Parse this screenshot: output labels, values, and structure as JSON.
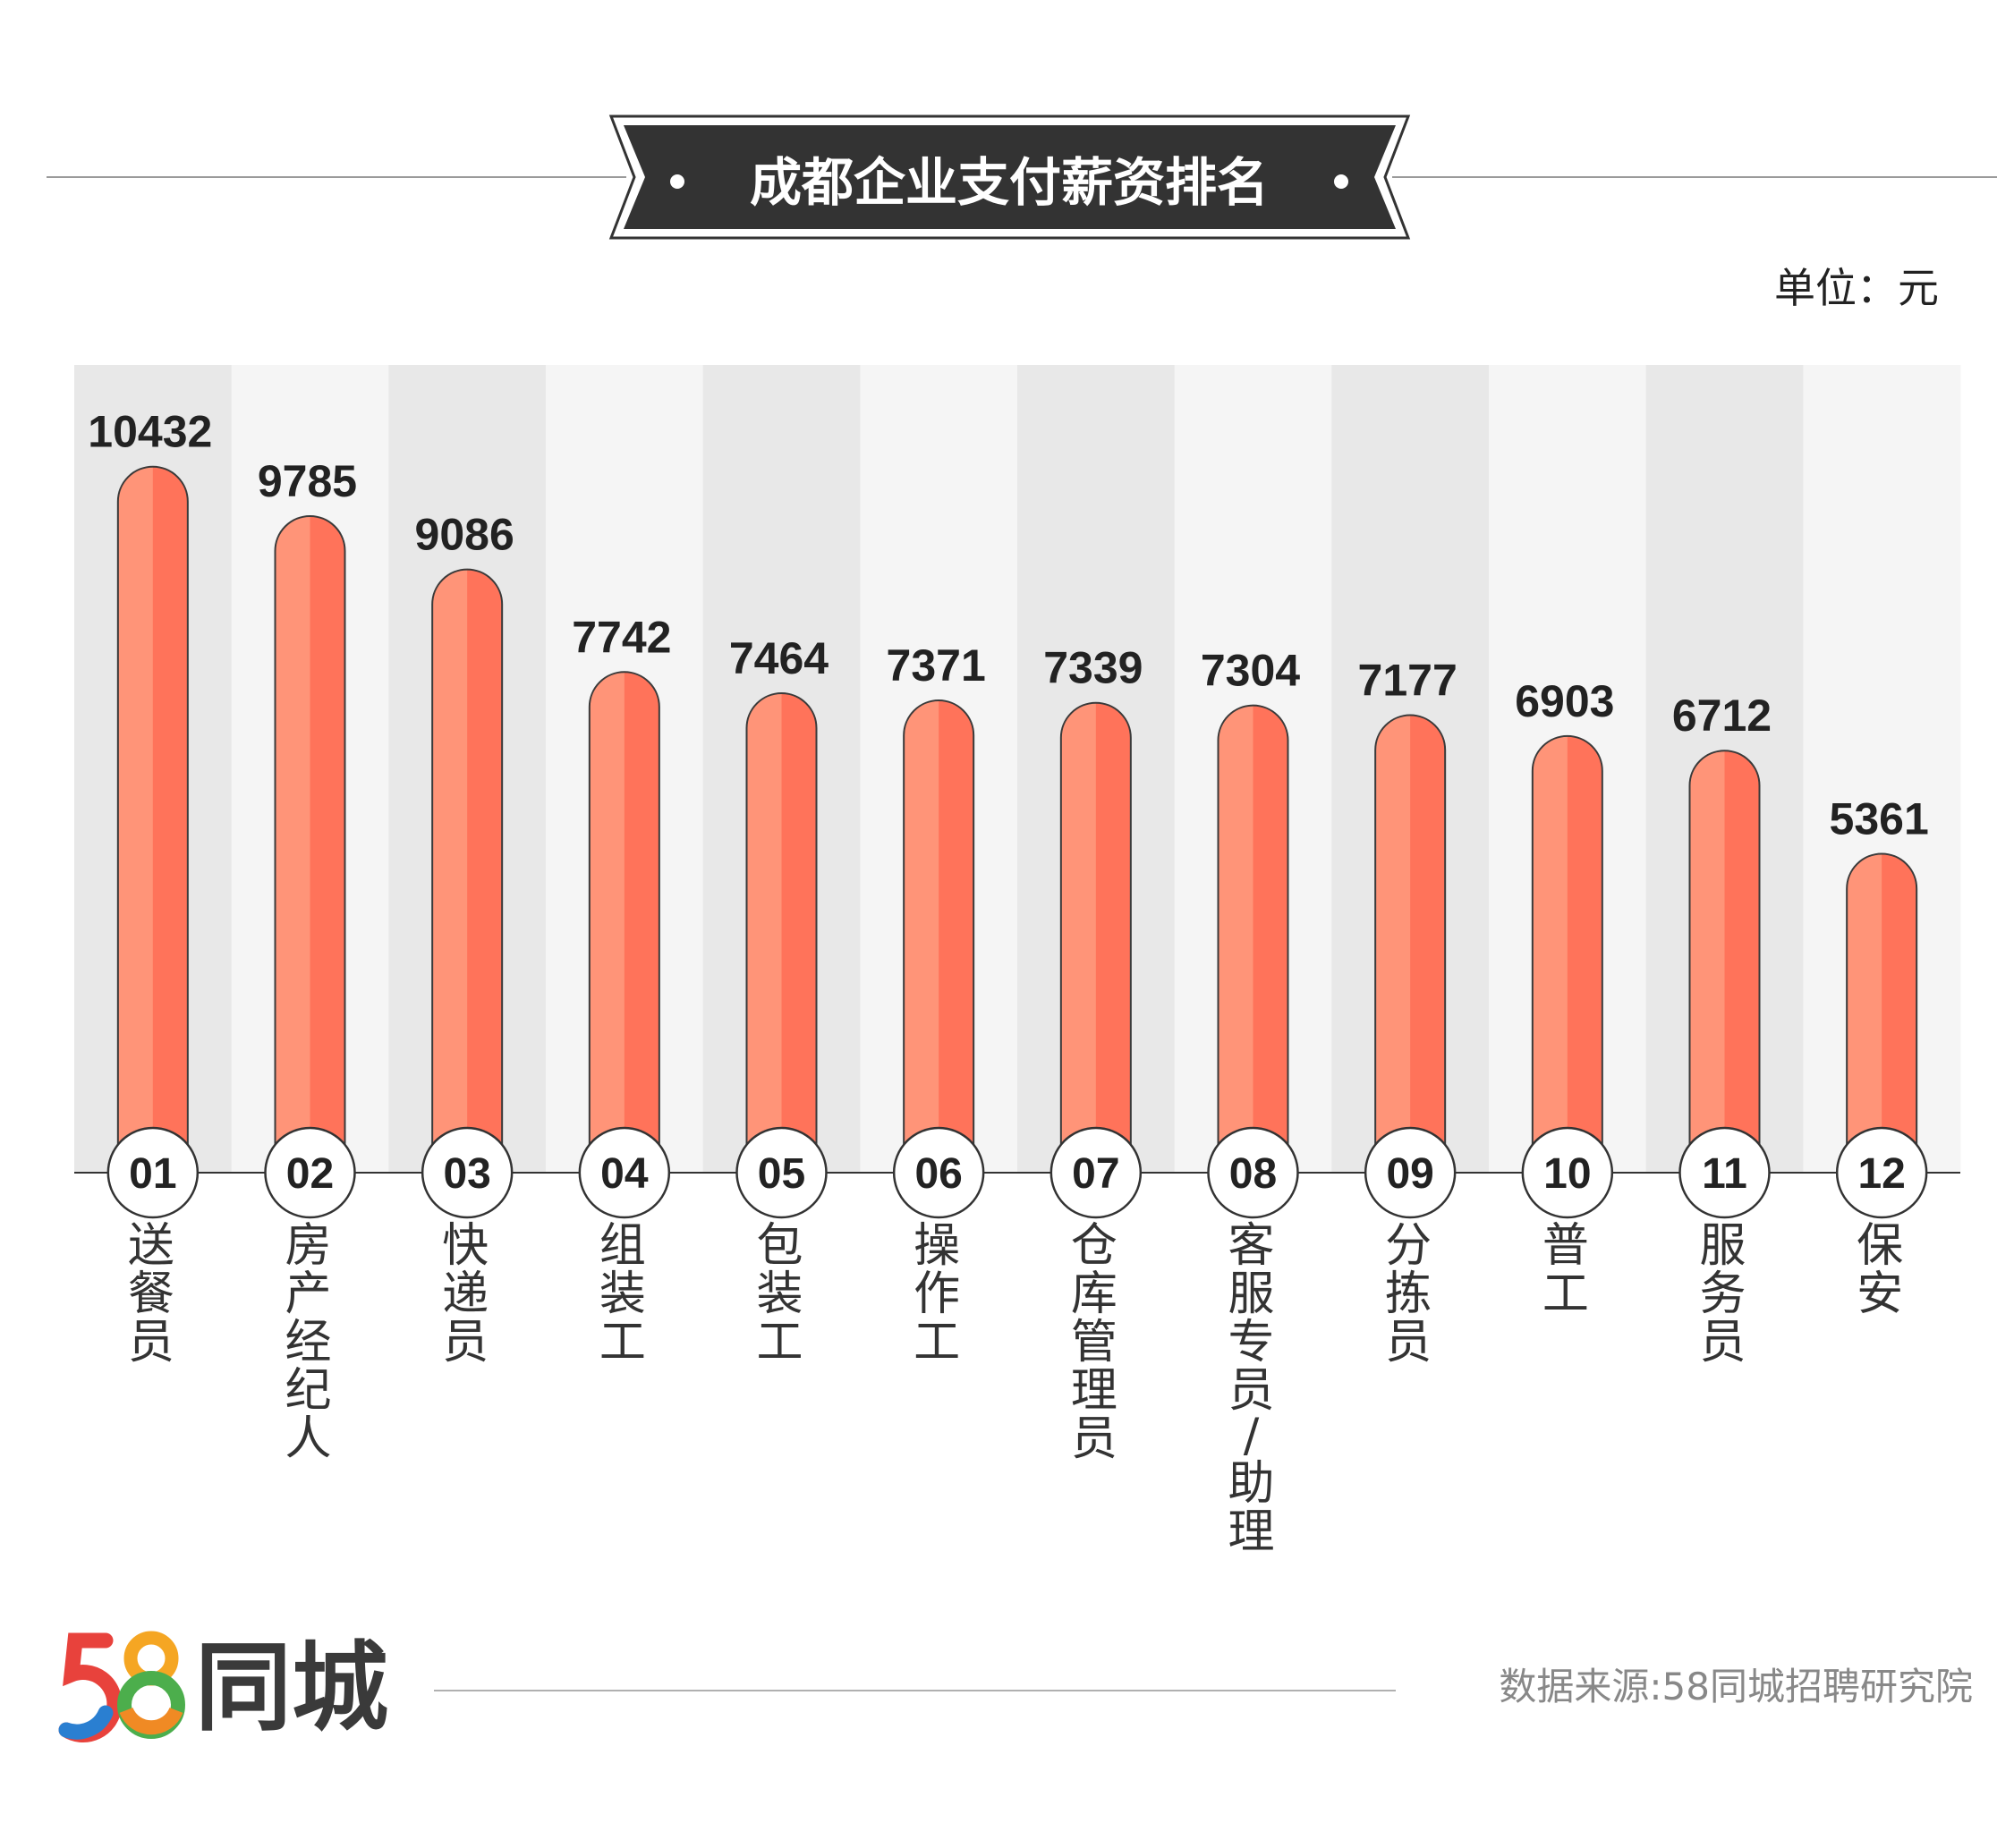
{
  "header": {
    "title": "成都企业支付薪资排名",
    "unit": "单位：元"
  },
  "footer": {
    "logo_number": "58",
    "logo_text": "同城",
    "source": "数据来源:58同城招聘研究院"
  },
  "colors": {
    "bar_light": "#ff9478",
    "bar_dark": "#ff735a",
    "stripe_dark": "#e8e8e8",
    "stripe_light": "#f5f5f5",
    "banner": "#333333",
    "logo_5": [
      "#e8423c",
      "#2a7fd1"
    ],
    "logo_8": [
      "#f5a623",
      "#4cae4c",
      "#e8423c"
    ]
  },
  "chart_data": {
    "type": "bar",
    "title": "成都企业支付薪资排名",
    "unit": "元",
    "ranks": [
      "01",
      "02",
      "03",
      "04",
      "05",
      "06",
      "07",
      "08",
      "09",
      "10",
      "11",
      "12"
    ],
    "categories": [
      "送餐员",
      "房产经纪人",
      "快递员",
      "组装工",
      "包装工",
      "操作工",
      "仓库管理员",
      "客服专员/助理",
      "分拣员",
      "普工",
      "服务员",
      "保安"
    ],
    "values": [
      10432,
      9785,
      9086,
      7742,
      7464,
      7371,
      7339,
      7304,
      7177,
      6903,
      6712,
      5361
    ],
    "value_labels": [
      "10432",
      "9785",
      "9086",
      "7742",
      "7464",
      "7371",
      "7339",
      "7304",
      "7177",
      "6903",
      "6712",
      "5361"
    ],
    "grid": false,
    "legend": "none"
  }
}
